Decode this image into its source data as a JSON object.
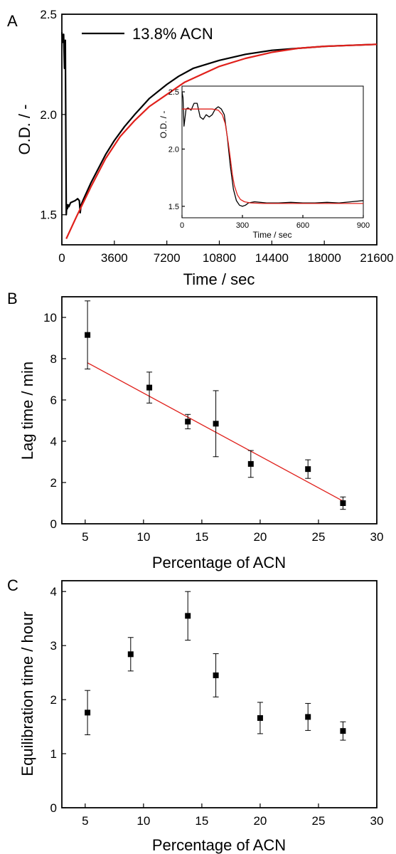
{
  "chart_data": [
    {
      "panel": "A",
      "type": "line",
      "xlabel": "Time / sec",
      "ylabel": "O.D. / -",
      "xlim": [
        0,
        21600
      ],
      "ylim": [
        1.35,
        2.5
      ],
      "xticks": [
        "0",
        "3600",
        "7200",
        "10800",
        "14400",
        "18000",
        "21600"
      ],
      "yticks": [
        "1.5",
        "2.0",
        "2.5"
      ],
      "legend": {
        "label": "13.8% ACN",
        "placement": "top-left"
      },
      "colors": {
        "data": "#000000",
        "fit": "#e0201b"
      },
      "series": [
        {
          "name": "13.8% ACN",
          "color": "#000000",
          "x": [
            0,
            60,
            120,
            180,
            240,
            300,
            340,
            380,
            420,
            480,
            600,
            900,
            1080,
            1200,
            1260,
            1320,
            1500,
            2000,
            2500,
            3000,
            3600,
            4300,
            5000,
            5500,
            6000,
            7200,
            8000,
            9000,
            10800,
            12600,
            14400,
            16200,
            18000,
            19800,
            21600
          ],
          "y": [
            2.41,
            2.36,
            2.4,
            2.23,
            2.37,
            1.5,
            1.55,
            1.53,
            1.55,
            1.54,
            1.56,
            1.57,
            1.58,
            1.57,
            1.51,
            1.55,
            1.58,
            1.66,
            1.73,
            1.8,
            1.87,
            1.94,
            2.0,
            2.04,
            2.08,
            2.15,
            2.19,
            2.23,
            2.27,
            2.3,
            2.32,
            2.33,
            2.34,
            2.345,
            2.35
          ]
        },
        {
          "name": "",
          "color": "#e0201b",
          "x": [
            300,
            1000,
            2000,
            3000,
            4000,
            5000,
            6000,
            7200,
            8400,
            9600,
            10800,
            12600,
            14400,
            16200,
            18000,
            19800,
            21600
          ],
          "y": [
            1.38,
            1.49,
            1.64,
            1.78,
            1.89,
            1.97,
            2.04,
            2.1,
            2.16,
            2.2,
            2.24,
            2.28,
            2.31,
            2.33,
            2.34,
            2.345,
            2.35
          ]
        }
      ],
      "inset": {
        "type": "line",
        "xlabel": "Time / sec",
        "ylabel": "O.D. / -",
        "xlim": [
          0,
          900
        ],
        "ylim": [
          1.4,
          2.55
        ],
        "xticks": [
          "0",
          "300",
          "600",
          "900"
        ],
        "yticks": [
          "1.5",
          "2.0",
          "2.5"
        ],
        "series": [
          {
            "name": "",
            "color": "#000000",
            "x": [
              0,
              5,
              10,
              20,
              30,
              45,
              60,
              75,
              90,
              105,
              120,
              135,
              150,
              165,
              180,
              195,
              210,
              225,
              240,
              255,
              270,
              285,
              300,
              315,
              330,
              360,
              420,
              480,
              540,
              600,
              660,
              720,
              780,
              840,
              900
            ],
            "y": [
              2.5,
              2.45,
              2.2,
              2.35,
              2.36,
              2.34,
              2.4,
              2.4,
              2.28,
              2.26,
              2.3,
              2.28,
              2.3,
              2.35,
              2.37,
              2.35,
              2.3,
              2.1,
              1.85,
              1.65,
              1.55,
              1.51,
              1.5,
              1.51,
              1.53,
              1.54,
              1.53,
              1.53,
              1.535,
              1.53,
              1.53,
              1.535,
              1.53,
              1.54,
              1.55
            ]
          },
          {
            "name": "",
            "color": "#e0201b",
            "x": [
              0,
              50,
              100,
              150,
              180,
              200,
              215,
              230,
              240,
              250,
              260,
              275,
              290,
              310,
              340,
              400,
              500,
              600,
              700,
              800,
              900
            ],
            "y": [
              2.35,
              2.35,
              2.35,
              2.35,
              2.34,
              2.3,
              2.22,
              2.05,
              1.92,
              1.78,
              1.68,
              1.6,
              1.56,
              1.54,
              1.53,
              1.525,
              1.525,
              1.525,
              1.525,
              1.525,
              1.525
            ]
          }
        ]
      }
    },
    {
      "panel": "B",
      "type": "scatter",
      "xlabel": "Percentage of ACN",
      "ylabel": "Lag time / min",
      "xlim": [
        3,
        30
      ],
      "ylim": [
        0,
        11
      ],
      "xticks": [
        "5",
        "10",
        "15",
        "20",
        "25",
        "30"
      ],
      "yticks": [
        "0",
        "2",
        "4",
        "6",
        "8",
        "10"
      ],
      "series": [
        {
          "name": "",
          "color": "#000000",
          "x": [
            5.2,
            10.5,
            13.8,
            16.2,
            19.2,
            24.1,
            27.1
          ],
          "y": [
            9.15,
            6.6,
            4.95,
            4.85,
            2.9,
            2.65,
            1.0
          ],
          "err": [
            1.65,
            0.75,
            0.35,
            1.6,
            0.65,
            0.45,
            0.3
          ]
        }
      ],
      "fit": {
        "color": "#e0201b",
        "x": [
          5.2,
          27.1
        ],
        "y": [
          7.8,
          1.1
        ]
      }
    },
    {
      "panel": "C",
      "type": "scatter",
      "xlabel": "Percentage of ACN",
      "ylabel": "Equilibration time / hour",
      "xlim": [
        3,
        30
      ],
      "ylim": [
        0,
        4.2
      ],
      "xticks": [
        "5",
        "10",
        "15",
        "20",
        "25",
        "30"
      ],
      "yticks": [
        "0",
        "1",
        "2",
        "3",
        "4"
      ],
      "series": [
        {
          "name": "",
          "color": "#000000",
          "x": [
            5.2,
            8.9,
            13.8,
            16.2,
            20.0,
            24.1,
            27.1
          ],
          "y": [
            1.76,
            2.84,
            3.55,
            2.45,
            1.66,
            1.68,
            1.42
          ],
          "err": [
            0.41,
            0.31,
            0.45,
            0.4,
            0.29,
            0.25,
            0.17
          ]
        }
      ]
    }
  ]
}
